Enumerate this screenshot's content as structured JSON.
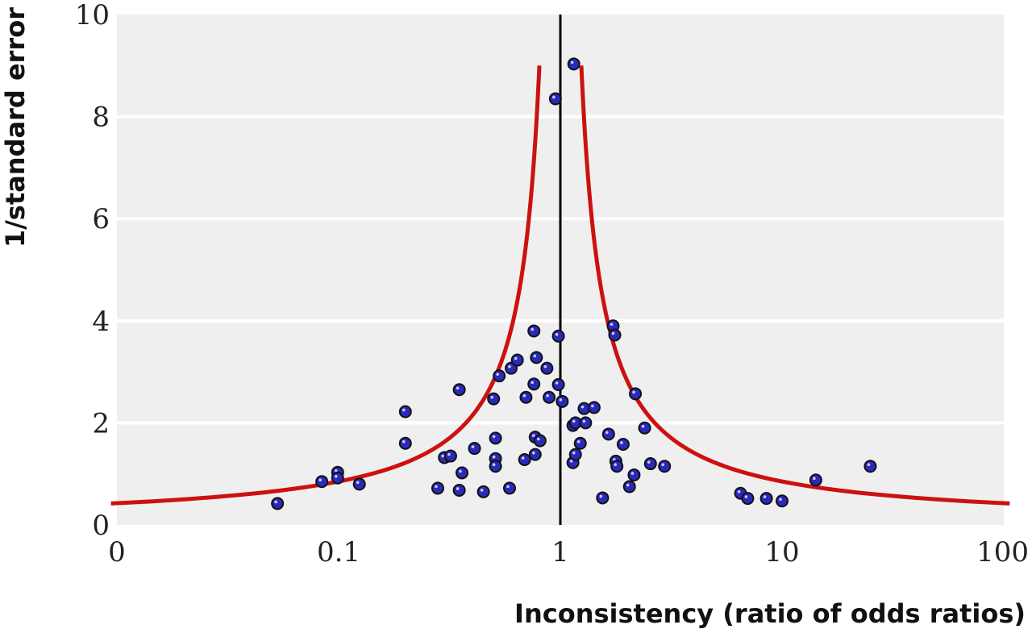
{
  "chart_data": {
    "type": "scatter",
    "title": "",
    "xlabel": "Inconsistency (ratio of odds ratios)",
    "ylabel": "1/standard error",
    "x_scale": "log",
    "xlim": [
      0.01,
      100
    ],
    "ylim": [
      0,
      10
    ],
    "x_ticks": [
      {
        "value": 0.01,
        "label": "0"
      },
      {
        "value": 0.1,
        "label": "0.1"
      },
      {
        "value": 1,
        "label": "1"
      },
      {
        "value": 10,
        "label": "10"
      },
      {
        "value": 100,
        "label": "100"
      }
    ],
    "y_ticks": [
      {
        "value": 0,
        "label": "0"
      },
      {
        "value": 2,
        "label": "2"
      },
      {
        "value": 4,
        "label": "4"
      },
      {
        "value": 6,
        "label": "6"
      },
      {
        "value": 8,
        "label": "8"
      },
      {
        "value": 10,
        "label": "10"
      }
    ],
    "grid": true,
    "reference_line_x": 1,
    "funnel_line": {
      "color": "#cc1111",
      "z": 1.96
    },
    "point_color": "#2a2ab8",
    "points": [
      [
        0.053,
        0.42
      ],
      [
        0.084,
        0.85
      ],
      [
        0.099,
        1.03
      ],
      [
        0.099,
        0.92
      ],
      [
        0.124,
        0.8
      ],
      [
        0.2,
        2.22
      ],
      [
        0.2,
        1.6
      ],
      [
        0.28,
        0.72
      ],
      [
        0.3,
        1.32
      ],
      [
        0.32,
        1.35
      ],
      [
        0.35,
        2.65
      ],
      [
        0.35,
        0.68
      ],
      [
        0.36,
        1.02
      ],
      [
        0.41,
        1.5
      ],
      [
        0.45,
        0.65
      ],
      [
        0.5,
        2.47
      ],
      [
        0.51,
        1.7
      ],
      [
        0.51,
        1.3
      ],
      [
        0.51,
        1.15
      ],
      [
        0.53,
        2.92
      ],
      [
        0.59,
        0.72
      ],
      [
        0.6,
        3.07
      ],
      [
        0.64,
        3.23
      ],
      [
        0.69,
        1.28
      ],
      [
        0.7,
        2.5
      ],
      [
        0.76,
        3.8
      ],
      [
        0.76,
        2.76
      ],
      [
        0.77,
        1.38
      ],
      [
        0.77,
        1.72
      ],
      [
        0.78,
        3.28
      ],
      [
        0.81,
        1.65
      ],
      [
        0.87,
        3.07
      ],
      [
        0.89,
        2.5
      ],
      [
        0.95,
        8.35
      ],
      [
        0.98,
        3.7
      ],
      [
        0.98,
        2.75
      ],
      [
        1.02,
        2.42
      ],
      [
        1.15,
        9.03
      ],
      [
        1.14,
        1.95
      ],
      [
        1.14,
        1.22
      ],
      [
        1.17,
        2.0
      ],
      [
        1.17,
        1.38
      ],
      [
        1.23,
        1.6
      ],
      [
        1.28,
        2.28
      ],
      [
        1.3,
        2.0
      ],
      [
        1.42,
        2.3
      ],
      [
        1.55,
        0.53
      ],
      [
        1.65,
        1.78
      ],
      [
        1.73,
        3.9
      ],
      [
        1.76,
        3.72
      ],
      [
        1.78,
        1.25
      ],
      [
        1.8,
        1.15
      ],
      [
        1.92,
        1.58
      ],
      [
        2.05,
        0.75
      ],
      [
        2.15,
        0.98
      ],
      [
        2.18,
        2.57
      ],
      [
        2.4,
        1.9
      ],
      [
        2.55,
        1.2
      ],
      [
        2.95,
        1.15
      ],
      [
        6.5,
        0.62
      ],
      [
        7.0,
        0.52
      ],
      [
        8.5,
        0.52
      ],
      [
        10.0,
        0.47
      ],
      [
        14.2,
        0.88
      ],
      [
        25.0,
        1.15
      ]
    ]
  }
}
